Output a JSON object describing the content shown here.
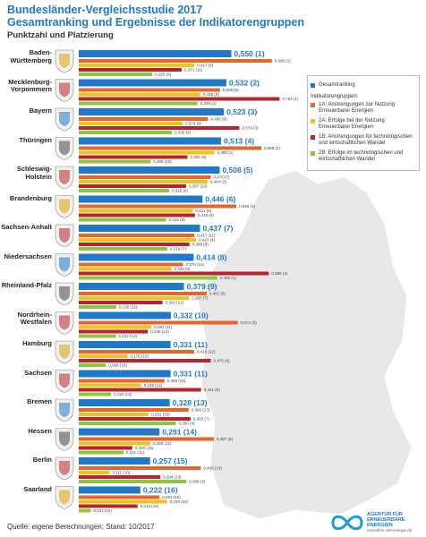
{
  "chart_data": {
    "type": "bar",
    "orientation": "horizontal",
    "title": "Bundesländer-Vergleichsstudie 2017",
    "subtitle": "Gesamtranking und Ergebnisse der Indikatorengruppen",
    "axis_title": "Punktzahl und Platzierung",
    "legend_title": "Indikatorengruppen:",
    "source": "Quelle: eigene Berechnungen; Stand: 10/2017",
    "logo": [
      "AGENTUR FÜR",
      "ERNEUERBARE",
      "ENERGIEN"
    ],
    "logo_url": "unendlich-viel-energie.de",
    "xlim": [
      0,
      1
    ],
    "categories": [
      "Baden-\nWürttemberg",
      "Mecklenburg-\nVorpommern",
      "Bayern",
      "Thüringen",
      "Schleswig-\nHolstein",
      "Brandenburg",
      "Sachsen-Anhalt",
      "Niedersachsen",
      "Rheinland-Pfalz",
      "Nordrhein-\nWestfalen",
      "Hamburg",
      "Sachsen",
      "Bremen",
      "Hessen",
      "Berlin",
      "Saarland"
    ],
    "series": [
      {
        "name": "Gesamtranking",
        "color": "#1f78c8",
        "values": [
          0.55,
          0.532,
          0.523,
          0.513,
          0.508,
          0.446,
          0.437,
          0.414,
          0.379,
          0.332,
          0.331,
          0.331,
          0.328,
          0.291,
          0.257,
          0.222
        ],
        "value_labels": [
          "0,550 (1)",
          "0,532 (2)",
          "0,523 (3)",
          "0,513 (4)",
          "0,508 (5)",
          "0,446 (6)",
          "0,437 (7)",
          "0,414 (8)",
          "0,379 (9)",
          "0,332 (10)",
          "0,331 (11)",
          "0,331 (11)",
          "0,328 (13)",
          "0,291 (14)",
          "0,257 (15)",
          "0,222 (16)"
        ]
      },
      {
        "name": "1A: Anstrengungen zur Nutzung Erneuerbarer Energien",
        "color": "#e4662b",
        "values": [
          0.696,
          0.509,
          0.466,
          0.658,
          0.476,
          0.568,
          0.417,
          0.376,
          0.461,
          0.573,
          0.416,
          0.309,
          0.396,
          0.487,
          0.44,
          0.291
        ],
        "value_labels": [
          "0,696 (1)",
          "0,509 (5)",
          "0,466 (8)",
          "0,658 (2)",
          "0,476 (7)",
          "0,568 (4)",
          "0,417 (11)",
          "0,376 (14)",
          "0,461 (9)",
          "0,573 (3)",
          "0,416 (12)",
          "0,309 (15)",
          "0,396 (13)",
          "0,487 (6)",
          "0,440 (10)",
          "0,291 (16)"
        ]
      },
      {
        "name": "2A: Erfolge bei der Nutzung Erneuerbarer Energien",
        "color": "#f2c21a",
        "values": [
          0.417,
          0.438,
          0.374,
          0.489,
          0.464,
          0.411,
          0.423,
          0.334,
          0.397,
          0.262,
          0.176,
          0.225,
          0.252,
          0.258,
          0.111,
          0.318
        ],
        "value_labels": [
          "0,417 (5)",
          "0,438 (3)",
          "0,374 (8)",
          "0,489 (1)",
          "0,464 (2)",
          "0,411 (6)",
          "0,423 (4)",
          "0,334 (9)",
          "0,397 (7)",
          "0,262 (11)",
          "0,176 (15)",
          "0,225 (14)",
          "0,252 (13)",
          "0,258 (12)",
          "0,111 (16)",
          "0,318 (10)"
        ]
      },
      {
        "name": "1B: Anstrengungen für technologischen und wirtschaftlichen Wandel",
        "color": "#b8242b",
        "values": [
          0.371,
          0.724,
          0.579,
          0.392,
          0.387,
          0.419,
          0.399,
          0.685,
          0.302,
          0.249,
          0.476,
          0.441,
          0.403,
          0.193,
          0.294,
          0.212
        ],
        "value_labels": [
          "0,371 (11)",
          "0,724 (1)",
          "0,579 (3)",
          "0,392 (9)",
          "0,387 (10)",
          "0,419 (6)",
          "0,399 (8)",
          "0,685 (2)",
          "0,302 (12)",
          "0,249 (14)",
          "0,476 (4)",
          "0,441 (5)",
          "0,403 (7)",
          "0,193 (16)",
          "0,294 (13)",
          "0,212 (15)"
        ]
      },
      {
        "name": "2B: Erfolge im technologischen und wirtschaftlichen Wandel",
        "color": "#8dc63f",
        "values": [
          0.265,
          0.428,
          0.336,
          0.259,
          0.326,
          0.315,
          0.319,
          0.499,
          0.135,
          0.134,
          0.098,
          0.116,
          0.35,
          0.161,
          0.388,
          0.043
        ],
        "value_labels": [
          "0,265 (9)",
          "0,428 (2)",
          "0,336 (5)",
          "0,259 (10)",
          "0,326 (6)",
          "0,315 (8)",
          "0,319 (7)",
          "0,499 (1)",
          "0,135 (12)",
          "0,134 (13)",
          "0,098 (15)",
          "0,116 (14)",
          "0,350 (4)",
          "0,161 (11)",
          "0,388 (3)",
          "0,043 (16)"
        ]
      }
    ]
  }
}
